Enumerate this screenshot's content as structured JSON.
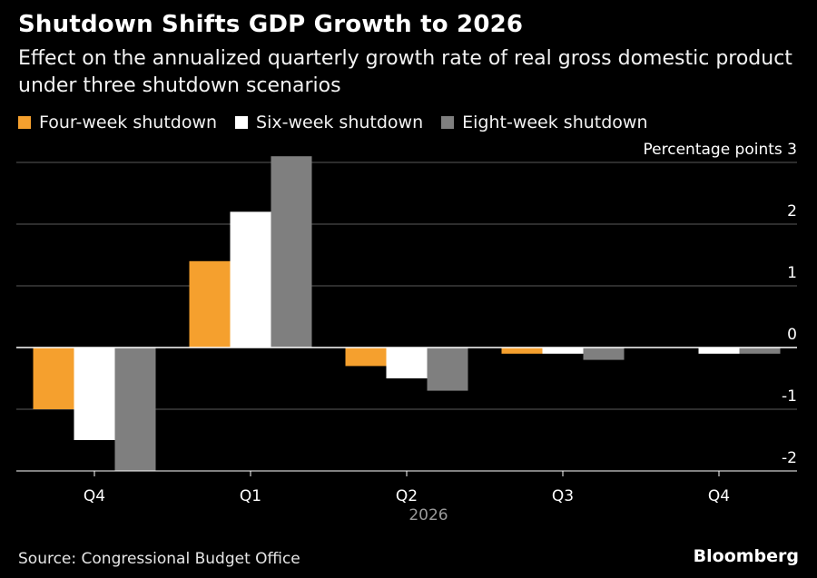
{
  "header": {
    "title": "Shutdown Shifts GDP Growth to 2026",
    "subtitle": "Effect on the annualized quarterly growth rate of real gross domestic product under three shutdown scenarios"
  },
  "footer": {
    "source": "Source: Congressional Budget Office",
    "brand": "Bloomberg"
  },
  "colors": {
    "background": "#000000",
    "gridline": "#5a5a5a",
    "zero_line": "#ffffff",
    "axis_text": "#ffffff",
    "year_text": "#9a9a9a"
  },
  "chart_data": {
    "type": "bar",
    "title": "Shutdown Shifts GDP Growth to 2026",
    "subtitle": "Effect on the annualized quarterly growth rate of real gross domestic product under three shutdown scenarios",
    "ylabel": "Percentage points",
    "ylim": [
      -2,
      3
    ],
    "yticks": [
      3,
      2,
      1,
      0,
      -1,
      -2
    ],
    "categories": [
      "Q4",
      "Q1",
      "Q2",
      "Q3",
      "Q4"
    ],
    "year_label": "2026",
    "grid": true,
    "legend_position": "top-left",
    "series": [
      {
        "name": "Four-week shutdown",
        "color": "#f5a02e",
        "values": [
          -1.0,
          1.4,
          -0.3,
          -0.1,
          0.0
        ]
      },
      {
        "name": "Six-week shutdown",
        "color": "#ffffff",
        "values": [
          -1.5,
          2.2,
          -0.5,
          -0.1,
          -0.1
        ]
      },
      {
        "name": "Eight-week shutdown",
        "color": "#7f7f7f",
        "values": [
          -2.0,
          3.1,
          -0.7,
          -0.2,
          -0.1
        ]
      }
    ]
  }
}
